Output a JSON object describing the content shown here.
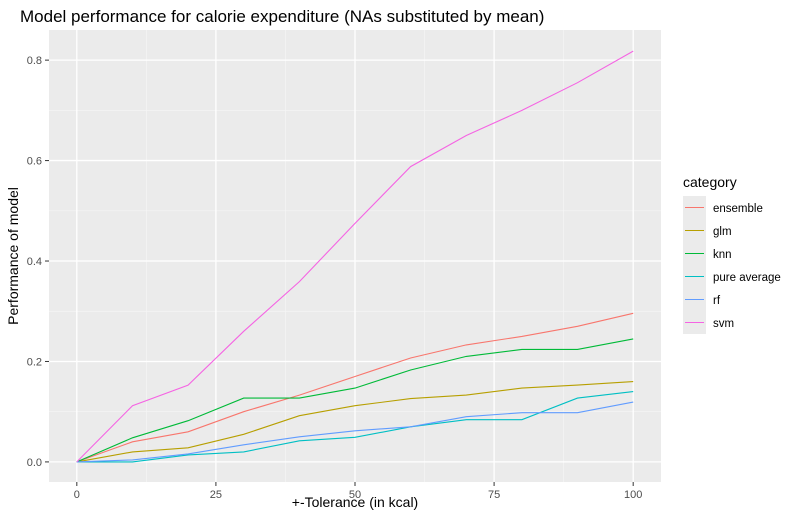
{
  "chart_data": {
    "type": "line",
    "title": "Model performance for calorie expenditure (NAs substituted by mean)",
    "xlabel": "+-Tolerance (in kcal)",
    "ylabel": "Performance of model",
    "xlim": [
      -5,
      105
    ],
    "ylim": [
      -0.04,
      0.86
    ],
    "xticks": [
      0,
      25,
      50,
      75,
      100
    ],
    "yticks": [
      0.0,
      0.2,
      0.4,
      0.6,
      0.8
    ],
    "xtick_labels": [
      "0",
      "25",
      "50",
      "75",
      "100"
    ],
    "ytick_labels": [
      "0.0",
      "0.2",
      "0.4",
      "0.6",
      "0.8"
    ],
    "grid": true,
    "legend_title": "category",
    "legend_position": "right",
    "x": [
      0,
      10,
      20,
      30,
      40,
      50,
      60,
      70,
      80,
      90,
      100
    ],
    "series": [
      {
        "name": "ensemble",
        "color": "#F8766D",
        "values": [
          0.0,
          0.04,
          0.06,
          0.1,
          0.133,
          0.17,
          0.207,
          0.233,
          0.25,
          0.27,
          0.296
        ]
      },
      {
        "name": "glm",
        "color": "#B79F00",
        "values": [
          0.0,
          0.02,
          0.028,
          0.055,
          0.092,
          0.112,
          0.126,
          0.133,
          0.147,
          0.153,
          0.16
        ]
      },
      {
        "name": "knn",
        "color": "#00BA38",
        "values": [
          0.0,
          0.048,
          0.082,
          0.127,
          0.127,
          0.147,
          0.183,
          0.21,
          0.224,
          0.224,
          0.245
        ]
      },
      {
        "name": "pure average",
        "color": "#00BFC4",
        "values": [
          0.0,
          0.0,
          0.014,
          0.02,
          0.042,
          0.049,
          0.07,
          0.084,
          0.084,
          0.127,
          0.14
        ]
      },
      {
        "name": "rf",
        "color": "#619CFF",
        "values": [
          0.0,
          0.004,
          0.016,
          0.034,
          0.05,
          0.062,
          0.07,
          0.09,
          0.098,
          0.098,
          0.119
        ]
      },
      {
        "name": "svm",
        "color": "#F564E3",
        "values": [
          0.0,
          0.112,
          0.153,
          0.26,
          0.359,
          0.475,
          0.588,
          0.65,
          0.7,
          0.755,
          0.818
        ]
      }
    ]
  }
}
